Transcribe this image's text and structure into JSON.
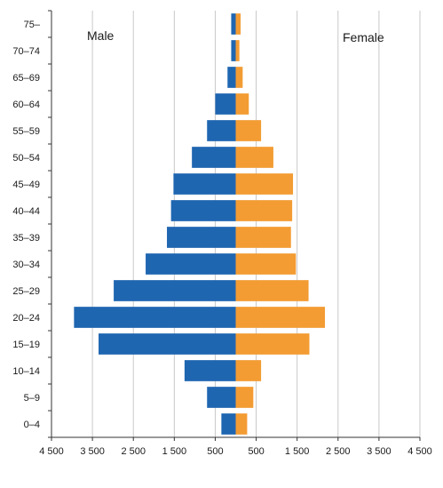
{
  "chart_data": {
    "type": "bar",
    "orientation": "horizontal",
    "style": "population-pyramid",
    "categories": [
      "0–4",
      "5–9",
      "10–14",
      "15–19",
      "20–24",
      "25–29",
      "30–34",
      "35–39",
      "40–44",
      "45–49",
      "50–54",
      "55–59",
      "60–64",
      "65–69",
      "70–74",
      "75–"
    ],
    "series": [
      {
        "name": "Male",
        "color": "#1f66b1",
        "values": [
          350,
          700,
          1250,
          3350,
          3950,
          2980,
          2200,
          1680,
          1580,
          1520,
          1070,
          700,
          500,
          200,
          110,
          110
        ]
      },
      {
        "name": "Female",
        "color": "#f39c33",
        "values": [
          280,
          430,
          620,
          1800,
          2180,
          1780,
          1470,
          1350,
          1380,
          1400,
          920,
          620,
          320,
          170,
          90,
          120
        ]
      }
    ],
    "x_ticks": [
      "4 500",
      "3 500",
      "2 500",
      "1 500",
      "500",
      "500",
      "1 500",
      "2 500",
      "3 500",
      "4 500"
    ],
    "xlim": [
      -4500,
      4500
    ],
    "grid": true,
    "legend": {
      "left_label": "Male",
      "right_label": "Female",
      "placement": "inside-top"
    }
  }
}
